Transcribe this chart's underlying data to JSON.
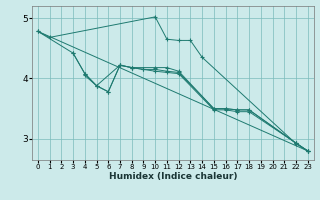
{
  "xlabel": "Humidex (Indice chaleur)",
  "bg_color": "#cceaea",
  "line_color": "#1e7a70",
  "grid_color": "#7bbcbc",
  "xlim": [
    -0.5,
    23.5
  ],
  "ylim": [
    2.65,
    5.2
  ],
  "yticks": [
    3,
    4,
    5
  ],
  "xticks": [
    0,
    1,
    2,
    3,
    4,
    5,
    6,
    7,
    8,
    9,
    10,
    11,
    12,
    13,
    14,
    15,
    16,
    17,
    18,
    19,
    20,
    21,
    22,
    23
  ],
  "line1_x": [
    0,
    1,
    10,
    11,
    12,
    13,
    14,
    22,
    23
  ],
  "line1_y": [
    4.78,
    4.68,
    5.02,
    4.65,
    4.63,
    4.63,
    4.35,
    2.92,
    2.8
  ],
  "line2_x": [
    0,
    3,
    4,
    5,
    7,
    8,
    10,
    11,
    12,
    15,
    16,
    17,
    18,
    22,
    23
  ],
  "line2_y": [
    4.78,
    4.42,
    4.08,
    3.88,
    4.22,
    4.18,
    4.18,
    4.18,
    4.12,
    3.5,
    3.5,
    3.48,
    3.48,
    2.93,
    2.8
  ],
  "line3_x": [
    0,
    23
  ],
  "line3_y": [
    4.78,
    2.8
  ],
  "line4_x": [
    3,
    4,
    5,
    6,
    7,
    8,
    9,
    10,
    11,
    12,
    15,
    16,
    17,
    18,
    22,
    23
  ],
  "line4_y": [
    4.42,
    4.08,
    3.88,
    3.78,
    4.22,
    4.18,
    4.15,
    4.15,
    4.12,
    4.1,
    3.5,
    3.5,
    3.48,
    3.48,
    2.93,
    2.8
  ],
  "line5_x": [
    4,
    5,
    6,
    7,
    8,
    9,
    10,
    11,
    12,
    15,
    16,
    17,
    18,
    22,
    23
  ],
  "line5_y": [
    4.05,
    3.88,
    3.78,
    4.22,
    4.18,
    4.15,
    4.12,
    4.1,
    4.08,
    3.48,
    3.48,
    3.45,
    3.45,
    2.93,
    2.8
  ]
}
